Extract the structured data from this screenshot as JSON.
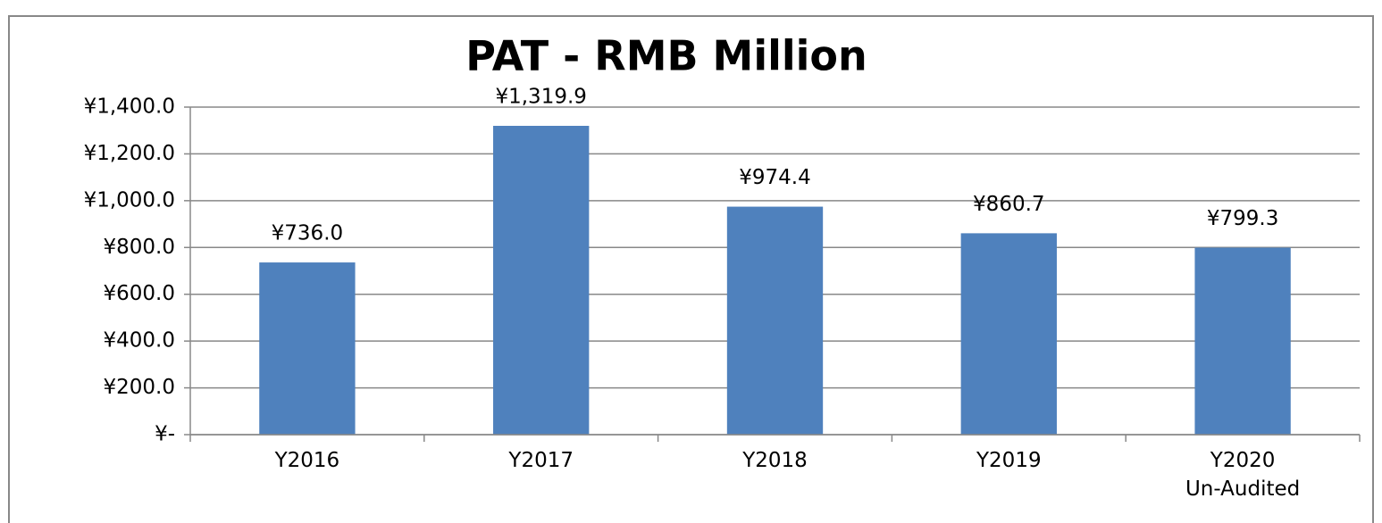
{
  "chart_data": {
    "type": "bar",
    "title": "PAT -  RMB Million",
    "categories": [
      "Y2016",
      "Y2017",
      "Y2018",
      "Y2019",
      "Y2020\nUn-Audited"
    ],
    "values": [
      736.0,
      1319.9,
      974.4,
      860.7,
      799.3
    ],
    "value_labels": [
      "¥736.0",
      "¥1,319.9",
      "¥974.4",
      "¥860.7",
      "¥799.3"
    ],
    "color": "#4f81bd",
    "ylim": [
      0,
      1400
    ],
    "yticks": [
      {
        "value": 0,
        "label": "¥-"
      },
      {
        "value": 200,
        "label": "¥200.0"
      },
      {
        "value": 400,
        "label": "¥400.0"
      },
      {
        "value": 600,
        "label": "¥600.0"
      },
      {
        "value": 800,
        "label": "¥800.0"
      },
      {
        "value": 1000,
        "label": "¥1,000.0"
      },
      {
        "value": 1200,
        "label": "¥1,200.0"
      },
      {
        "value": 1400,
        "label": "¥1,400.0"
      }
    ],
    "grid": true
  }
}
